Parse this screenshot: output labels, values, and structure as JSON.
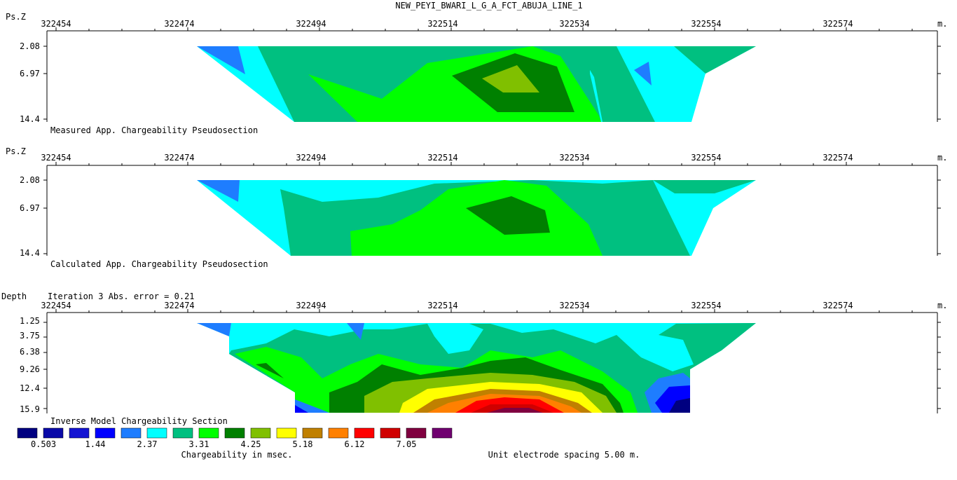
{
  "title": "NEW_PEYI_BWARI_L_G_A_FCT_ABUJA_LINE_1",
  "x_axis": {
    "tick_labels": [
      "322454",
      "322474",
      "322494",
      "322514",
      "322534",
      "322554",
      "322574"
    ],
    "unit": "m."
  },
  "panels": [
    {
      "id": "measured",
      "axis_title": "Ps.Z",
      "caption": "Measured App. Chargeability Pseudosection",
      "depth_labels": [
        "2.08",
        "6.97",
        "14.4"
      ]
    },
    {
      "id": "calculated",
      "axis_title": "Ps.Z",
      "caption": "Calculated App. Chargeability Pseudosection",
      "depth_labels": [
        "2.08",
        "6.97",
        "14.4"
      ]
    },
    {
      "id": "inverse",
      "axis_title": "Depth",
      "iteration_text": "Iteration 3 Abs. error = 0.21",
      "caption": "Inverse Model Chargeability Section",
      "depth_labels": [
        "1.25",
        "3.75",
        "6.38",
        "9.26",
        "12.4",
        "15.9"
      ]
    }
  ],
  "legend": {
    "colors": [
      "#000080",
      "#0a0aa8",
      "#1414d2",
      "#0000ff",
      "#1e7dff",
      "#00ffff",
      "#00c080",
      "#00ff00",
      "#008000",
      "#80c000",
      "#ffff00",
      "#c08000",
      "#ff8000",
      "#ff0000",
      "#d00000",
      "#800040",
      "#700070"
    ],
    "labels": [
      "0.503",
      "1.44",
      "2.37",
      "3.31",
      "4.25",
      "5.18",
      "6.12",
      "7.05"
    ],
    "caption": "Chargeability in msec."
  },
  "spacing_note": "Unit electrode spacing 5.00 m."
}
